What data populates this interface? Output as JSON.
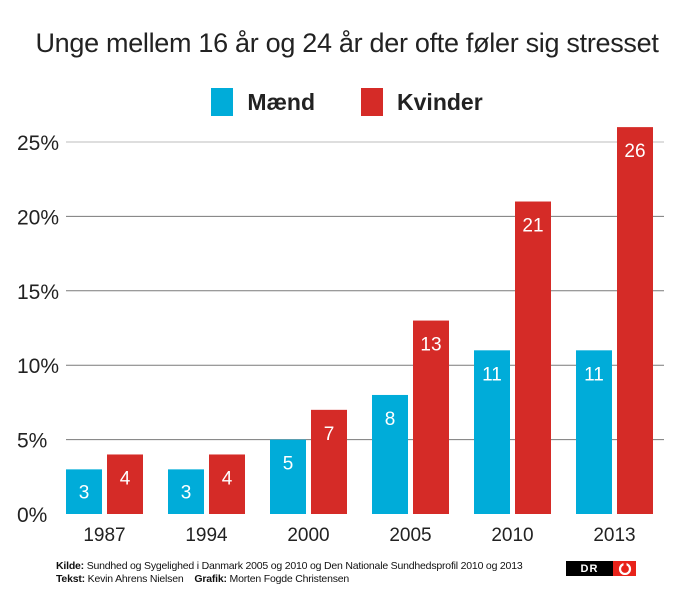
{
  "chart_data": {
    "type": "bar",
    "title": "Unge mellem 16 år og 24 år der ofte føler sig stresset",
    "xlabel": "",
    "ylabel": "",
    "categories": [
      "1987",
      "1994",
      "2000",
      "2005",
      "2010",
      "2013"
    ],
    "series": [
      {
        "name": "Mænd",
        "color": "#00acd9",
        "values": [
          3,
          3,
          5,
          8,
          11,
          11
        ]
      },
      {
        "name": "Kvinder",
        "color": "#d52b27",
        "values": [
          4,
          4,
          7,
          13,
          21,
          26
        ]
      }
    ],
    "ylim": [
      0,
      25
    ],
    "yticks": [
      0,
      5,
      10,
      15,
      20,
      25
    ],
    "ytick_labels": [
      "0%",
      "5%",
      "10%",
      "15%",
      "20%",
      "25%"
    ],
    "grid": true,
    "legend": "top-center",
    "data_labels": true
  },
  "footer": {
    "source_label": "Kilde:",
    "source_text": "Sundhed og Sygelighed i Danmark 2005 og 2010 og Den Nationale Sundhedsprofil 2010 og 2013",
    "text_label": "Tekst:",
    "text_author": "Kevin Ahrens Nielsen",
    "graphic_label": "Grafik:",
    "graphic_author": "Morten Fogde Christensen"
  },
  "logo": {
    "text": "DR",
    "icon": "dr-eye-icon",
    "accent": "#e8231a"
  }
}
